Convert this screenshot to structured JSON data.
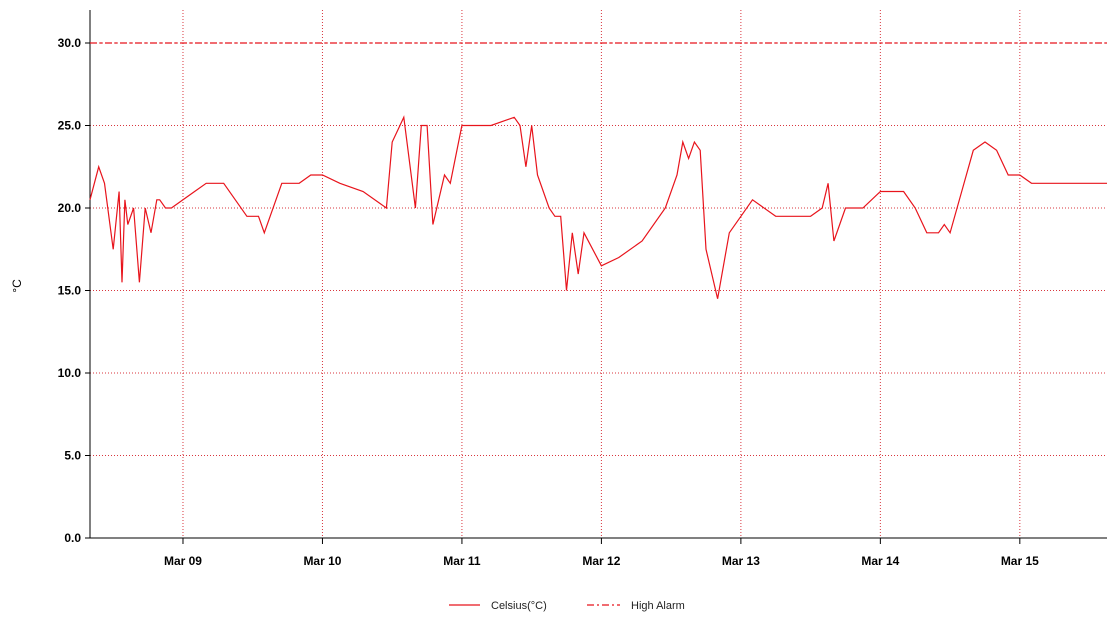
{
  "chart_data": {
    "type": "line",
    "title": "",
    "xlabel": "",
    "ylabel": "°C",
    "ylim": [
      0,
      32
    ],
    "xlim": [
      "Mar 08 08:00",
      "Mar 15 15:00"
    ],
    "y_ticks": [
      "0.0",
      "5.0",
      "10.0",
      "15.0",
      "20.0",
      "25.0",
      "30.0"
    ],
    "x_ticks": [
      "Mar 09",
      "Mar 10",
      "Mar 11",
      "Mar 12",
      "Mar 13",
      "Mar 14",
      "Mar 15"
    ],
    "grid": true,
    "legend_position": "bottom",
    "colors": {
      "series": "#e8141c",
      "grid": "#d9363e",
      "axis": "#000000"
    },
    "series": [
      {
        "name": "Celsius(°C)",
        "style": "solid",
        "x": [
          "Mar 08 08:00",
          "Mar 08 09:30",
          "Mar 08 10:30",
          "Mar 08 12:00",
          "Mar 08 13:00",
          "Mar 08 13:30",
          "Mar 08 14:00",
          "Mar 08 14:30",
          "Mar 08 15:30",
          "Mar 08 16:30",
          "Mar 08 17:30",
          "Mar 08 18:30",
          "Mar 08 19:30",
          "Mar 08 20:00",
          "Mar 08 21:00",
          "Mar 08 22:00",
          "Mar 09 00:00",
          "Mar 09 02:00",
          "Mar 09 04:00",
          "Mar 09 07:00",
          "Mar 09 09:00",
          "Mar 09 11:00",
          "Mar 09 13:00",
          "Mar 09 14:00",
          "Mar 09 17:00",
          "Mar 09 20:00",
          "Mar 09 22:00",
          "Mar 10 00:00",
          "Mar 10 03:00",
          "Mar 10 07:00",
          "Mar 10 11:00",
          "Mar 10 12:00",
          "Mar 10 14:00",
          "Mar 10 16:00",
          "Mar 10 17:00",
          "Mar 10 18:00",
          "Mar 10 19:00",
          "Mar 10 21:00",
          "Mar 10 22:00",
          "Mar 11 00:00",
          "Mar 11 05:00",
          "Mar 11 09:00",
          "Mar 11 10:00",
          "Mar 11 11:00",
          "Mar 11 12:00",
          "Mar 11 13:00",
          "Mar 11 15:00",
          "Mar 11 16:00",
          "Mar 11 17:00",
          "Mar 11 18:00",
          "Mar 11 19:00",
          "Mar 11 20:00",
          "Mar 11 21:00",
          "Mar 12 00:00",
          "Mar 12 03:00",
          "Mar 12 07:00",
          "Mar 12 11:00",
          "Mar 12 13:00",
          "Mar 12 14:00",
          "Mar 12 15:00",
          "Mar 12 16:00",
          "Mar 12 17:00",
          "Mar 12 18:00",
          "Mar 12 20:00",
          "Mar 12 22:00",
          "Mar 13 02:00",
          "Mar 13 06:00",
          "Mar 13 09:00",
          "Mar 13 12:00",
          "Mar 13 14:00",
          "Mar 13 15:00",
          "Mar 13 16:00",
          "Mar 13 18:00",
          "Mar 13 21:00",
          "Mar 14 00:00",
          "Mar 14 02:00",
          "Mar 14 04:00",
          "Mar 14 06:00",
          "Mar 14 08:00",
          "Mar 14 10:00",
          "Mar 14 11:00",
          "Mar 14 12:00",
          "Mar 14 14:00",
          "Mar 14 16:00",
          "Mar 14 18:00",
          "Mar 14 20:00",
          "Mar 14 22:00",
          "Mar 15 00:00",
          "Mar 15 02:00",
          "Mar 15 08:00",
          "Mar 15 15:00"
        ],
        "y": [
          20.5,
          22.5,
          21.5,
          17.5,
          21.0,
          15.5,
          20.5,
          19.0,
          20.0,
          15.5,
          20.0,
          18.5,
          20.5,
          20.5,
          20.0,
          20.0,
          20.5,
          21.0,
          21.5,
          21.5,
          20.5,
          19.5,
          19.5,
          18.5,
          21.5,
          21.5,
          22.0,
          22.0,
          21.5,
          21.0,
          20.0,
          24.0,
          25.5,
          20.0,
          25.0,
          25.0,
          19.0,
          22.0,
          21.5,
          25.0,
          25.0,
          25.5,
          25.0,
          22.5,
          25.0,
          22.0,
          20.0,
          19.5,
          19.5,
          15.0,
          18.5,
          16.0,
          18.5,
          16.5,
          17.0,
          18.0,
          20.0,
          22.0,
          24.0,
          23.0,
          24.0,
          23.5,
          17.5,
          14.5,
          18.5,
          20.5,
          19.5,
          19.5,
          19.5,
          20.0,
          21.5,
          18.0,
          20.0,
          20.0,
          21.0,
          21.0,
          21.0,
          20.0,
          18.5,
          18.5,
          19.0,
          18.5,
          21.0,
          23.5,
          24.0,
          23.5,
          22.0,
          22.0,
          21.5,
          21.5,
          21.5
        ]
      },
      {
        "name": "High Alarm",
        "style": "dash-dot",
        "x": [
          "Mar 08 08:00",
          "Mar 15 15:00"
        ],
        "y": [
          30.0,
          30.0
        ]
      }
    ]
  }
}
